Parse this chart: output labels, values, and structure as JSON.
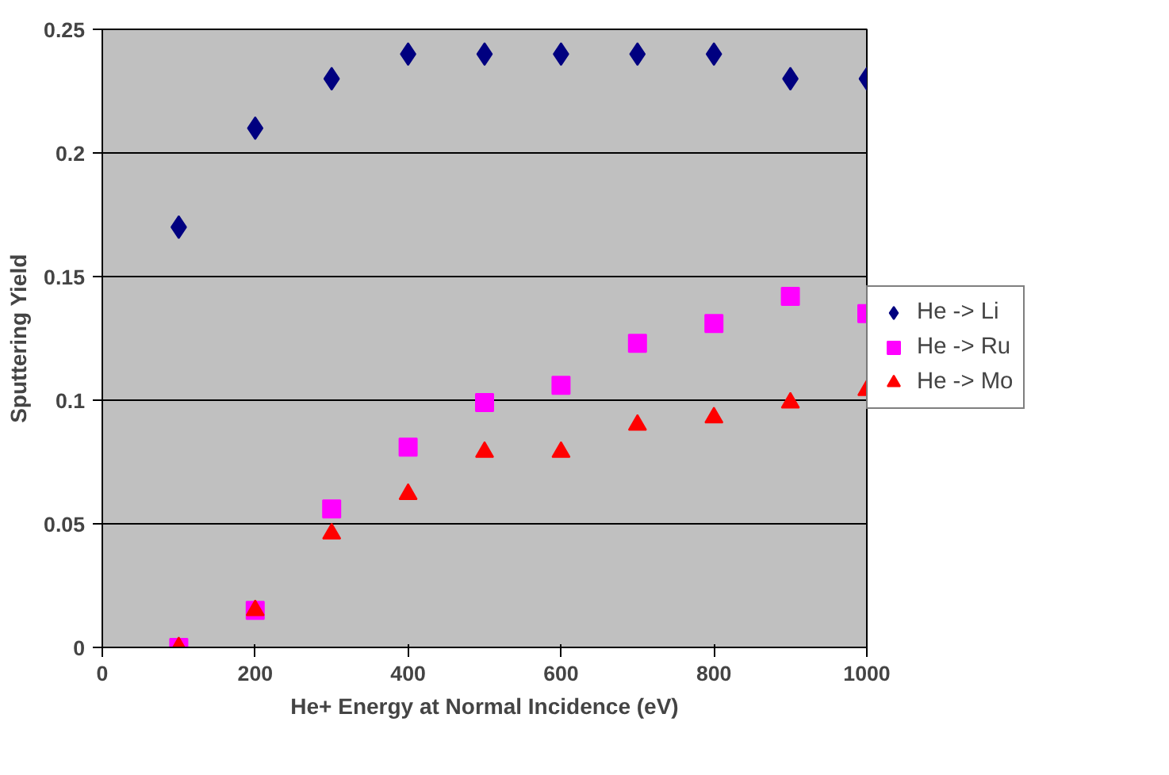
{
  "chart_data": {
    "type": "scatter",
    "xlabel": "He+ Energy at Normal Incidence (eV)",
    "ylabel": "Sputtering Yield",
    "x": [
      100,
      200,
      300,
      400,
      500,
      600,
      700,
      800,
      900,
      1000
    ],
    "series": [
      {
        "name": "He -> Li",
        "color": "#000080",
        "marker": "diamond",
        "values": [
          0.17,
          0.21,
          0.23,
          0.24,
          0.24,
          0.24,
          0.24,
          0.24,
          0.23,
          0.23
        ]
      },
      {
        "name": "He -> Ru",
        "color": "#ff00ff",
        "marker": "square",
        "values": [
          0,
          0.015,
          0.056,
          0.081,
          0.099,
          0.106,
          0.123,
          0.131,
          0.142,
          0.135
        ]
      },
      {
        "name": "He -> Mo",
        "color": "#ff0000",
        "marker": "triangle",
        "values": [
          0,
          0.015,
          0.046,
          0.062,
          0.079,
          0.079,
          0.09,
          0.093,
          0.099,
          0.104
        ]
      }
    ],
    "xlim": [
      0,
      1000
    ],
    "ylim": [
      0,
      0.25
    ],
    "xticks": [
      0,
      200,
      400,
      600,
      800,
      1000
    ],
    "yticks": [
      0,
      0.05,
      0.1,
      0.15,
      0.2,
      0.25
    ],
    "grid": "y",
    "legend": "right"
  }
}
